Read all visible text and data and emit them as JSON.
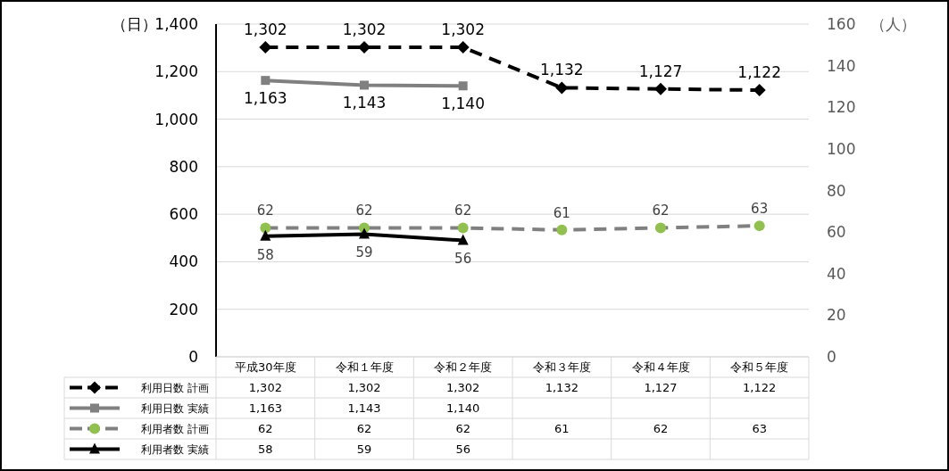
{
  "chart_data": {
    "type": "line",
    "ylabel": "（日）",
    "y2label": "（人）",
    "categories": [
      "平成30年度",
      "令和１年度",
      "令和２年度",
      "令和３年度",
      "令和４年度",
      "令和５年度"
    ],
    "ylim": [
      0,
      1400
    ],
    "yticks": [
      0,
      200,
      400,
      600,
      800,
      {
        "value": 1000,
        "label": "1,000"
      },
      {
        "value": 1200,
        "label": "1,200"
      },
      {
        "value": 1400,
        "label": "1,400"
      }
    ],
    "y2lim": [
      0,
      160
    ],
    "y2ticks": [
      0,
      20,
      40,
      60,
      80,
      100,
      120,
      140,
      160
    ],
    "grid": "y",
    "legend": "bottom",
    "series": [
      {
        "name": "利用日数 計画",
        "color": "#000000",
        "axis": "y",
        "line_style": "dashed",
        "marker": "diamond",
        "values": [
          1302,
          1302,
          1302,
          1132,
          1127,
          1122
        ],
        "value_labels": [
          "1,302",
          "1,302",
          "1,302",
          "1,132",
          "1,127",
          "1,122"
        ]
      },
      {
        "name": "利用日数 実績",
        "color": "#808080",
        "axis": "y",
        "line_style": "solid",
        "marker": "square",
        "values": [
          1163,
          1143,
          1140,
          null,
          null,
          null
        ],
        "value_labels": [
          "1,163",
          "1,143",
          "1,140",
          null,
          null,
          null
        ]
      },
      {
        "name": "利用者数 計画",
        "color": "#808080",
        "colors": [
          "#92c050",
          "#92c050",
          "#92c050",
          "#92c050",
          "#92c050",
          "#92c050"
        ],
        "axis": "y2",
        "line_style": "dashed",
        "marker": "circle",
        "values": [
          62,
          62,
          62,
          61,
          62,
          63
        ],
        "value_labels": [
          "62",
          "62",
          "62",
          "61",
          "62",
          "63"
        ]
      },
      {
        "name": "利用者数 実績",
        "color": "#000000",
        "axis": "y2",
        "line_style": "solid",
        "marker": "triangle",
        "values": [
          58,
          59,
          56,
          null,
          null,
          null
        ],
        "value_labels": [
          "58",
          "59",
          "56",
          null,
          null,
          null
        ]
      }
    ]
  }
}
